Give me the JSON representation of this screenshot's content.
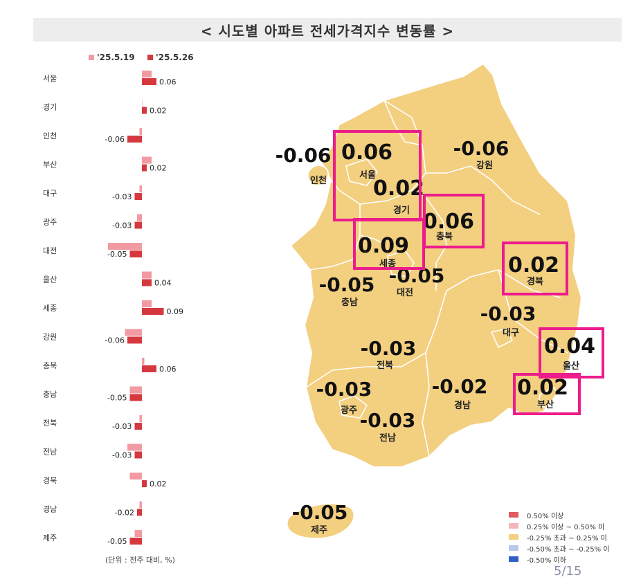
{
  "title": "< 시도별 아파트 전세가격지수 변동률 >",
  "unit_note": "(단위 : 전주 대비, %)",
  "page_indicator": "5/15",
  "colors": {
    "prev_week": "#f29aa2",
    "curr_week": "#d5393f",
    "map_fill": "#f3cf80",
    "map_stroke": "#ffffff",
    "highlight_box": "#ec1c8c"
  },
  "chart_data": {
    "type": "bar",
    "orientation": "horizontal",
    "categories": [
      "서울",
      "경기",
      "인천",
      "부산",
      "대구",
      "광주",
      "대전",
      "울산",
      "세종",
      "강원",
      "충북",
      "충남",
      "전북",
      "전남",
      "경북",
      "경남",
      "제주"
    ],
    "series": [
      {
        "name": "'25.5.19",
        "values": [
          0.04,
          0.0,
          -0.01,
          0.04,
          -0.01,
          -0.02,
          -0.14,
          0.04,
          0.04,
          -0.07,
          0.01,
          -0.05,
          -0.01,
          -0.06,
          -0.05,
          -0.01,
          -0.03
        ]
      },
      {
        "name": "'25.5.26",
        "values": [
          0.06,
          0.02,
          -0.06,
          0.02,
          -0.03,
          -0.03,
          -0.05,
          0.04,
          0.09,
          -0.06,
          0.06,
          -0.05,
          -0.03,
          -0.03,
          0.02,
          -0.02,
          -0.05
        ]
      }
    ],
    "data_labels": [
      "0.06",
      "0.02",
      "-0.06",
      "0.02",
      "-0.03",
      "-0.03",
      "-0.05",
      "0.04",
      "0.09",
      "-0.06",
      "0.06",
      "-0.05",
      "-0.03",
      "-0.03",
      "0.02",
      "-0.02",
      "-0.05"
    ]
  },
  "map": {
    "regions": [
      {
        "name": "서울",
        "value": "0.06",
        "highlighted": true
      },
      {
        "name": "인천",
        "value": "-0.06",
        "highlighted": false
      },
      {
        "name": "경기",
        "value": "0.02",
        "highlighted": true
      },
      {
        "name": "강원",
        "value": "-0.06",
        "highlighted": false
      },
      {
        "name": "충북",
        "value": "0.06",
        "highlighted": true
      },
      {
        "name": "세종",
        "value": "0.09",
        "highlighted": true
      },
      {
        "name": "경북",
        "value": "0.02",
        "highlighted": true
      },
      {
        "name": "충남",
        "value": "-0.05",
        "highlighted": false
      },
      {
        "name": "대전",
        "value": "-0.05",
        "highlighted": false
      },
      {
        "name": "대구",
        "value": "-0.03",
        "highlighted": false
      },
      {
        "name": "울산",
        "value": "0.04",
        "highlighted": true
      },
      {
        "name": "전북",
        "value": "-0.03",
        "highlighted": false
      },
      {
        "name": "부산",
        "value": "0.02",
        "highlighted": true
      },
      {
        "name": "광주",
        "value": "-0.03",
        "highlighted": false
      },
      {
        "name": "경남",
        "value": "-0.02",
        "highlighted": false
      },
      {
        "name": "전남",
        "value": "-0.03",
        "highlighted": false
      },
      {
        "name": "제주",
        "value": "-0.05",
        "highlighted": false
      }
    ]
  },
  "legend": [
    {
      "label": "0.50% 이상",
      "color": "#e05a62"
    },
    {
      "label": "0.25% 이상 ~ 0.50% 미",
      "color": "#f4b6bb"
    },
    {
      "label": "-0.25% 초과 ~ 0.25% 미",
      "color": "#f3cf80"
    },
    {
      "label": "-0.50% 초과 ~ -0.25% 이",
      "color": "#b6c7ec"
    },
    {
      "label": "-0.50% 이하",
      "color": "#2f5fc4"
    }
  ]
}
